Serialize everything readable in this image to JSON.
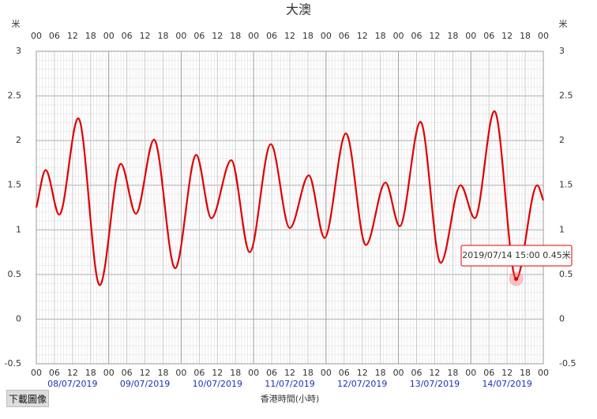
{
  "chart_data": {
    "type": "line",
    "title": "大澳",
    "x_label": "香港時間(小時)",
    "y_unit": "米",
    "x": [
      0,
      3.1,
      7.6,
      13.9,
      21,
      28,
      33,
      39,
      46,
      53,
      58,
      64.6,
      70.7,
      77.7,
      84,
      90.3,
      95.5,
      102.6,
      109.2,
      115.7,
      120.4,
      127.3,
      134,
      140.6,
      145.3,
      151.8,
      159,
      166,
      168
    ],
    "series": [
      {
        "color": "#e00000",
        "values": [
          1.25,
          1.67,
          1.17,
          2.25,
          0.38,
          1.74,
          1.18,
          2.01,
          0.57,
          1.84,
          1.13,
          1.78,
          0.75,
          1.96,
          1.02,
          1.61,
          0.91,
          2.08,
          0.83,
          1.53,
          1.04,
          2.21,
          0.63,
          1.5,
          1.13,
          2.33,
          0.45,
          1.5,
          1.33
        ]
      }
    ],
    "xlim": [
      0,
      168
    ],
    "xticks": [
      {
        "value": 0,
        "label": "00"
      },
      {
        "value": 6,
        "label": "06"
      },
      {
        "value": 12,
        "label": "12"
      },
      {
        "value": 18,
        "label": "18"
      },
      {
        "value": 24,
        "label": "00"
      },
      {
        "value": 30,
        "label": "06"
      },
      {
        "value": 36,
        "label": "12"
      },
      {
        "value": 42,
        "label": "18"
      },
      {
        "value": 48,
        "label": "00"
      },
      {
        "value": 54,
        "label": "06"
      },
      {
        "value": 60,
        "label": "12"
      },
      {
        "value": 66,
        "label": "18"
      },
      {
        "value": 72,
        "label": "00"
      },
      {
        "value": 78,
        "label": "06"
      },
      {
        "value": 84,
        "label": "12"
      },
      {
        "value": 90,
        "label": "18"
      },
      {
        "value": 96,
        "label": "00"
      },
      {
        "value": 102,
        "label": "06"
      },
      {
        "value": 108,
        "label": "12"
      },
      {
        "value": 114,
        "label": "18"
      },
      {
        "value": 120,
        "label": "00"
      },
      {
        "value": 126,
        "label": "06"
      },
      {
        "value": 132,
        "label": "12"
      },
      {
        "value": 138,
        "label": "18"
      },
      {
        "value": 144,
        "label": "00"
      },
      {
        "value": 150,
        "label": "06"
      },
      {
        "value": 156,
        "label": "12"
      },
      {
        "value": 162,
        "label": "18"
      },
      {
        "value": 168,
        "label": "00"
      }
    ],
    "date_labels": [
      "08/07/2019",
      "09/07/2019",
      "10/07/2019",
      "11/07/2019",
      "12/07/2019",
      "13/07/2019",
      "14/07/2019"
    ],
    "ylim": [
      -0.5,
      3
    ],
    "yticks": [
      -0.5,
      0,
      0.5,
      1,
      1.5,
      2,
      2.5,
      3
    ],
    "grid": true,
    "tooltip": {
      "index": 26,
      "text": "2019/07/14 15:00 0.45米"
    }
  },
  "download_button": "下載圖像"
}
